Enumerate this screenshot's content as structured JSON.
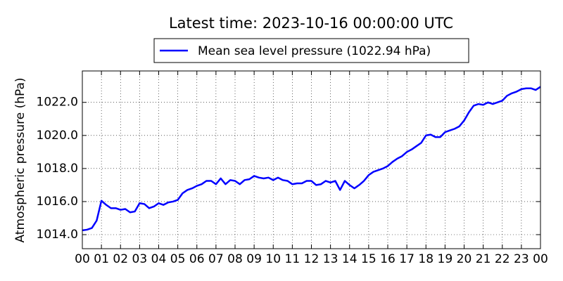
{
  "chart_data": {
    "type": "line",
    "title": "Latest time: 2023-10-16 00:00:00 UTC",
    "ylabel": "Atmospheric pressure (hPa)",
    "x": [
      0,
      0.25,
      0.5,
      0.75,
      1,
      1.25,
      1.5,
      1.75,
      2,
      2.25,
      2.5,
      2.75,
      3,
      3.25,
      3.5,
      3.75,
      4,
      4.25,
      4.5,
      4.75,
      5,
      5.25,
      5.5,
      5.75,
      6,
      6.25,
      6.5,
      6.75,
      7,
      7.25,
      7.5,
      7.75,
      8,
      8.25,
      8.5,
      8.75,
      9,
      9.25,
      9.5,
      9.75,
      10,
      10.25,
      10.5,
      10.75,
      11,
      11.25,
      11.5,
      11.75,
      12,
      12.25,
      12.5,
      12.75,
      13,
      13.25,
      13.5,
      13.75,
      14,
      14.25,
      14.5,
      14.75,
      15,
      15.25,
      15.5,
      15.75,
      16,
      16.25,
      16.5,
      16.75,
      17,
      17.25,
      17.5,
      17.75,
      18,
      18.25,
      18.5,
      18.75,
      19,
      19.25,
      19.5,
      19.75,
      20,
      20.25,
      20.5,
      20.75,
      21,
      21.25,
      21.5,
      21.75,
      22,
      22.25,
      22.5,
      22.75,
      23,
      23.25,
      23.5,
      23.75,
      24
    ],
    "series": [
      {
        "name": "Mean sea level pressure (1022.94 hPa)",
        "color": "#0000ff",
        "values": [
          1014.26,
          1014.3,
          1014.4,
          1014.85,
          1016.05,
          1015.8,
          1015.6,
          1015.6,
          1015.5,
          1015.55,
          1015.35,
          1015.4,
          1015.9,
          1015.85,
          1015.6,
          1015.7,
          1015.9,
          1015.8,
          1015.95,
          1016.0,
          1016.1,
          1016.5,
          1016.7,
          1016.8,
          1016.95,
          1017.05,
          1017.25,
          1017.25,
          1017.05,
          1017.4,
          1017.05,
          1017.3,
          1017.25,
          1017.05,
          1017.3,
          1017.35,
          1017.55,
          1017.45,
          1017.4,
          1017.45,
          1017.3,
          1017.45,
          1017.3,
          1017.25,
          1017.05,
          1017.1,
          1017.1,
          1017.25,
          1017.25,
          1017.0,
          1017.05,
          1017.25,
          1017.15,
          1017.25,
          1016.7,
          1017.25,
          1017.0,
          1016.8,
          1017.0,
          1017.25,
          1017.6,
          1017.8,
          1017.9,
          1018.0,
          1018.15,
          1018.4,
          1018.6,
          1018.75,
          1019.0,
          1019.15,
          1019.35,
          1019.55,
          1020.0,
          1020.05,
          1019.9,
          1019.9,
          1020.2,
          1020.3,
          1020.4,
          1020.55,
          1020.9,
          1021.4,
          1021.8,
          1021.9,
          1021.85,
          1022.0,
          1021.9,
          1022.0,
          1022.1,
          1022.4,
          1022.55,
          1022.65,
          1022.8,
          1022.85,
          1022.85,
          1022.75,
          1022.94
        ]
      }
    ],
    "xlim": [
      0,
      24
    ],
    "xticks": [
      {
        "value": 0,
        "label": "00"
      },
      {
        "value": 1,
        "label": "01"
      },
      {
        "value": 2,
        "label": "02"
      },
      {
        "value": 3,
        "label": "03"
      },
      {
        "value": 4,
        "label": "04"
      },
      {
        "value": 5,
        "label": "05"
      },
      {
        "value": 6,
        "label": "06"
      },
      {
        "value": 7,
        "label": "07"
      },
      {
        "value": 8,
        "label": "08"
      },
      {
        "value": 9,
        "label": "09"
      },
      {
        "value": 10,
        "label": "10"
      },
      {
        "value": 11,
        "label": "11"
      },
      {
        "value": 12,
        "label": "12"
      },
      {
        "value": 13,
        "label": "13"
      },
      {
        "value": 14,
        "label": "14"
      },
      {
        "value": 15,
        "label": "15"
      },
      {
        "value": 16,
        "label": "16"
      },
      {
        "value": 17,
        "label": "17"
      },
      {
        "value": 18,
        "label": "18"
      },
      {
        "value": 19,
        "label": "19"
      },
      {
        "value": 20,
        "label": "20"
      },
      {
        "value": 21,
        "label": "21"
      },
      {
        "value": 22,
        "label": "22"
      },
      {
        "value": 23,
        "label": "23"
      },
      {
        "value": 24,
        "label": "00"
      }
    ],
    "ylim": [
      1013.15,
      1023.9
    ],
    "yticks": [
      {
        "value": 1014,
        "label": "1014.0"
      },
      {
        "value": 1016,
        "label": "1016.0"
      },
      {
        "value": 1018,
        "label": "1018.0"
      },
      {
        "value": 1020,
        "label": "1020.0"
      },
      {
        "value": 1022,
        "label": "1022.0"
      }
    ],
    "grid": true,
    "legend": "upper center"
  }
}
